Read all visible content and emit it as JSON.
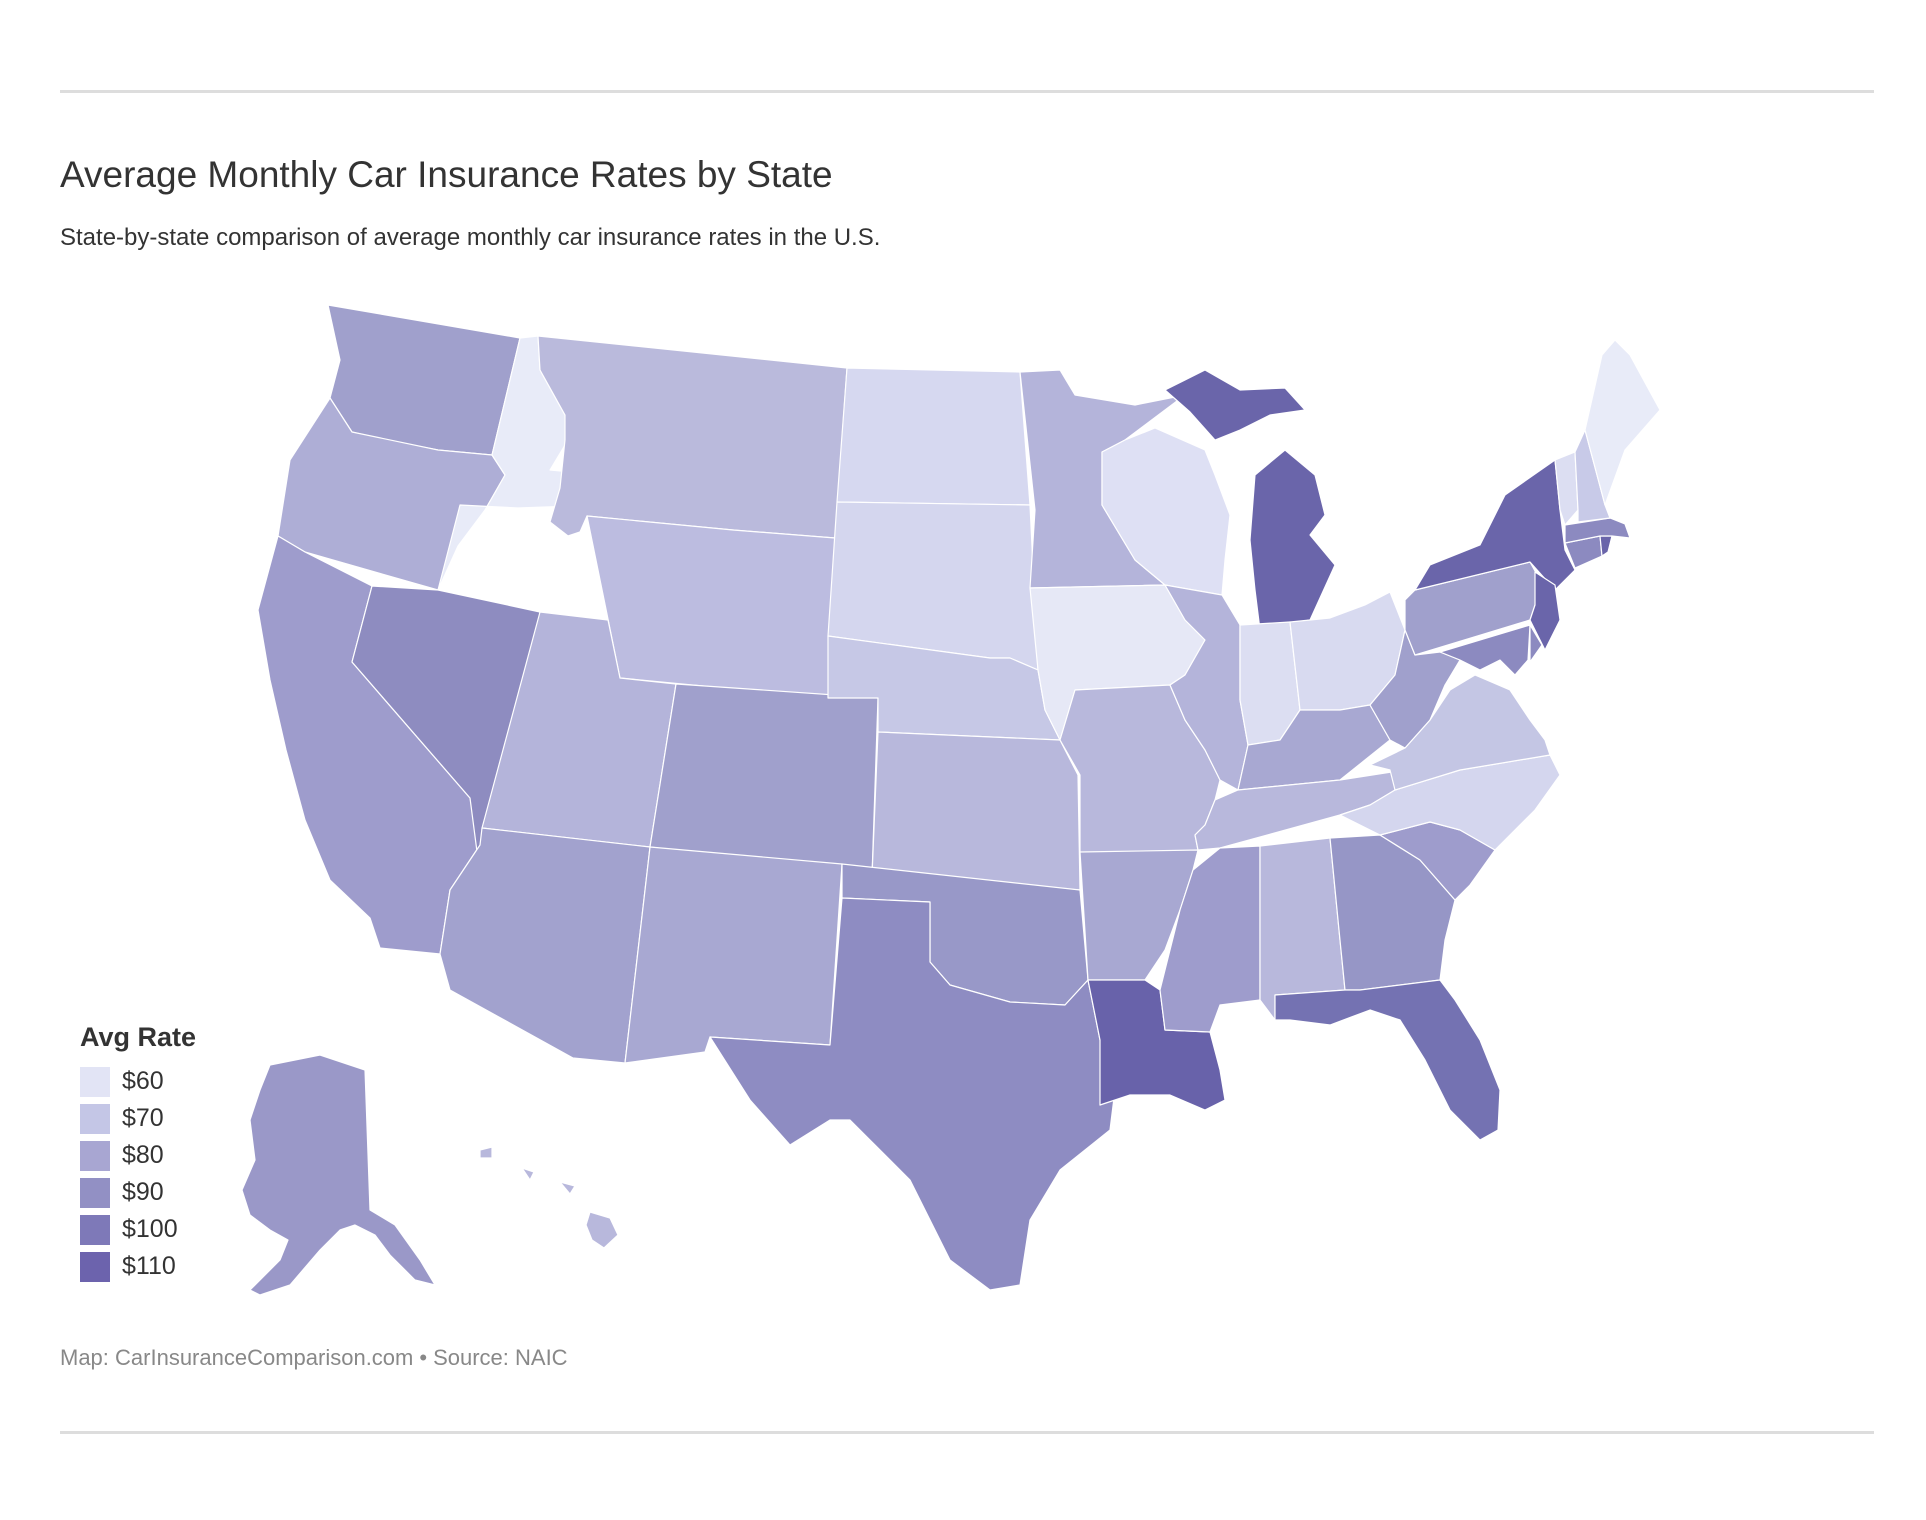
{
  "header": {
    "title": "Average Monthly Car Insurance Rates by State",
    "subtitle": "State-by-state comparison of average monthly car insurance rates in the U.S."
  },
  "legend": {
    "title": "Avg Rate",
    "items": [
      {
        "label": "$60",
        "color": "#e2e4f5"
      },
      {
        "label": "$70",
        "color": "#c4c6e6"
      },
      {
        "label": "$80",
        "color": "#a8a6d2"
      },
      {
        "label": "$90",
        "color": "#9290c4"
      },
      {
        "label": "$100",
        "color": "#7e79b8"
      },
      {
        "label": "$110",
        "color": "#6c63ad"
      }
    ]
  },
  "footer": {
    "map_credit": "Map: CarInsuranceComparison.com",
    "separator": "•",
    "source": "Source: NAIC"
  },
  "chart_data": {
    "type": "choropleth",
    "region": "United States",
    "legend_position": "bottom-left",
    "state_colors": {
      "WA": "#a0a0cc",
      "OR": "#aeaed6",
      "CA": "#9e9ccc",
      "NV": "#8e8cc0",
      "ID": "#e8ebf8",
      "MT": "#babadc",
      "WY": "#bcbce0",
      "UT": "#b4b4da",
      "AZ": "#a2a2ce",
      "CO": "#a0a0cc",
      "NM": "#a8a8d2",
      "ND": "#d6d8f0",
      "SD": "#d4d6ee",
      "NE": "#c6c8e6",
      "KS": "#b8b8dc",
      "OK": "#9898c8",
      "TX": "#8e8cc2",
      "MN": "#b4b4da",
      "IA": "#e6e8f6",
      "MO": "#b8b8dc",
      "AR": "#a8a8d2",
      "LA": "#6862aa",
      "WI": "#dee0f4",
      "IL": "#b4b4da",
      "MI": "#6a65aa",
      "IN": "#dcdef2",
      "OH": "#d8daf0",
      "KY": "#a8a8d2",
      "TN": "#b8b8dc",
      "MS": "#9e9ccc",
      "AL": "#b8b8dc",
      "GA": "#9696c6",
      "FL": "#7472b2",
      "SC": "#9e9ccc",
      "NC": "#d4d6ee",
      "VA": "#c4c6e4",
      "WV": "#a0a0cc",
      "PA": "#a0a0cc",
      "NY": "#6a65aa",
      "NJ": "#6a65aa",
      "MD": "#8c8ac0",
      "DE": "#8c8ac0",
      "CT": "#8c8ac0",
      "RI": "#6a65aa",
      "MA": "#8c8ac0",
      "VT": "#dcdef2",
      "NH": "#c8cae8",
      "ME": "#e8ebf8",
      "AK": "#9a98c8",
      "HI": "#b8b8dc"
    }
  }
}
